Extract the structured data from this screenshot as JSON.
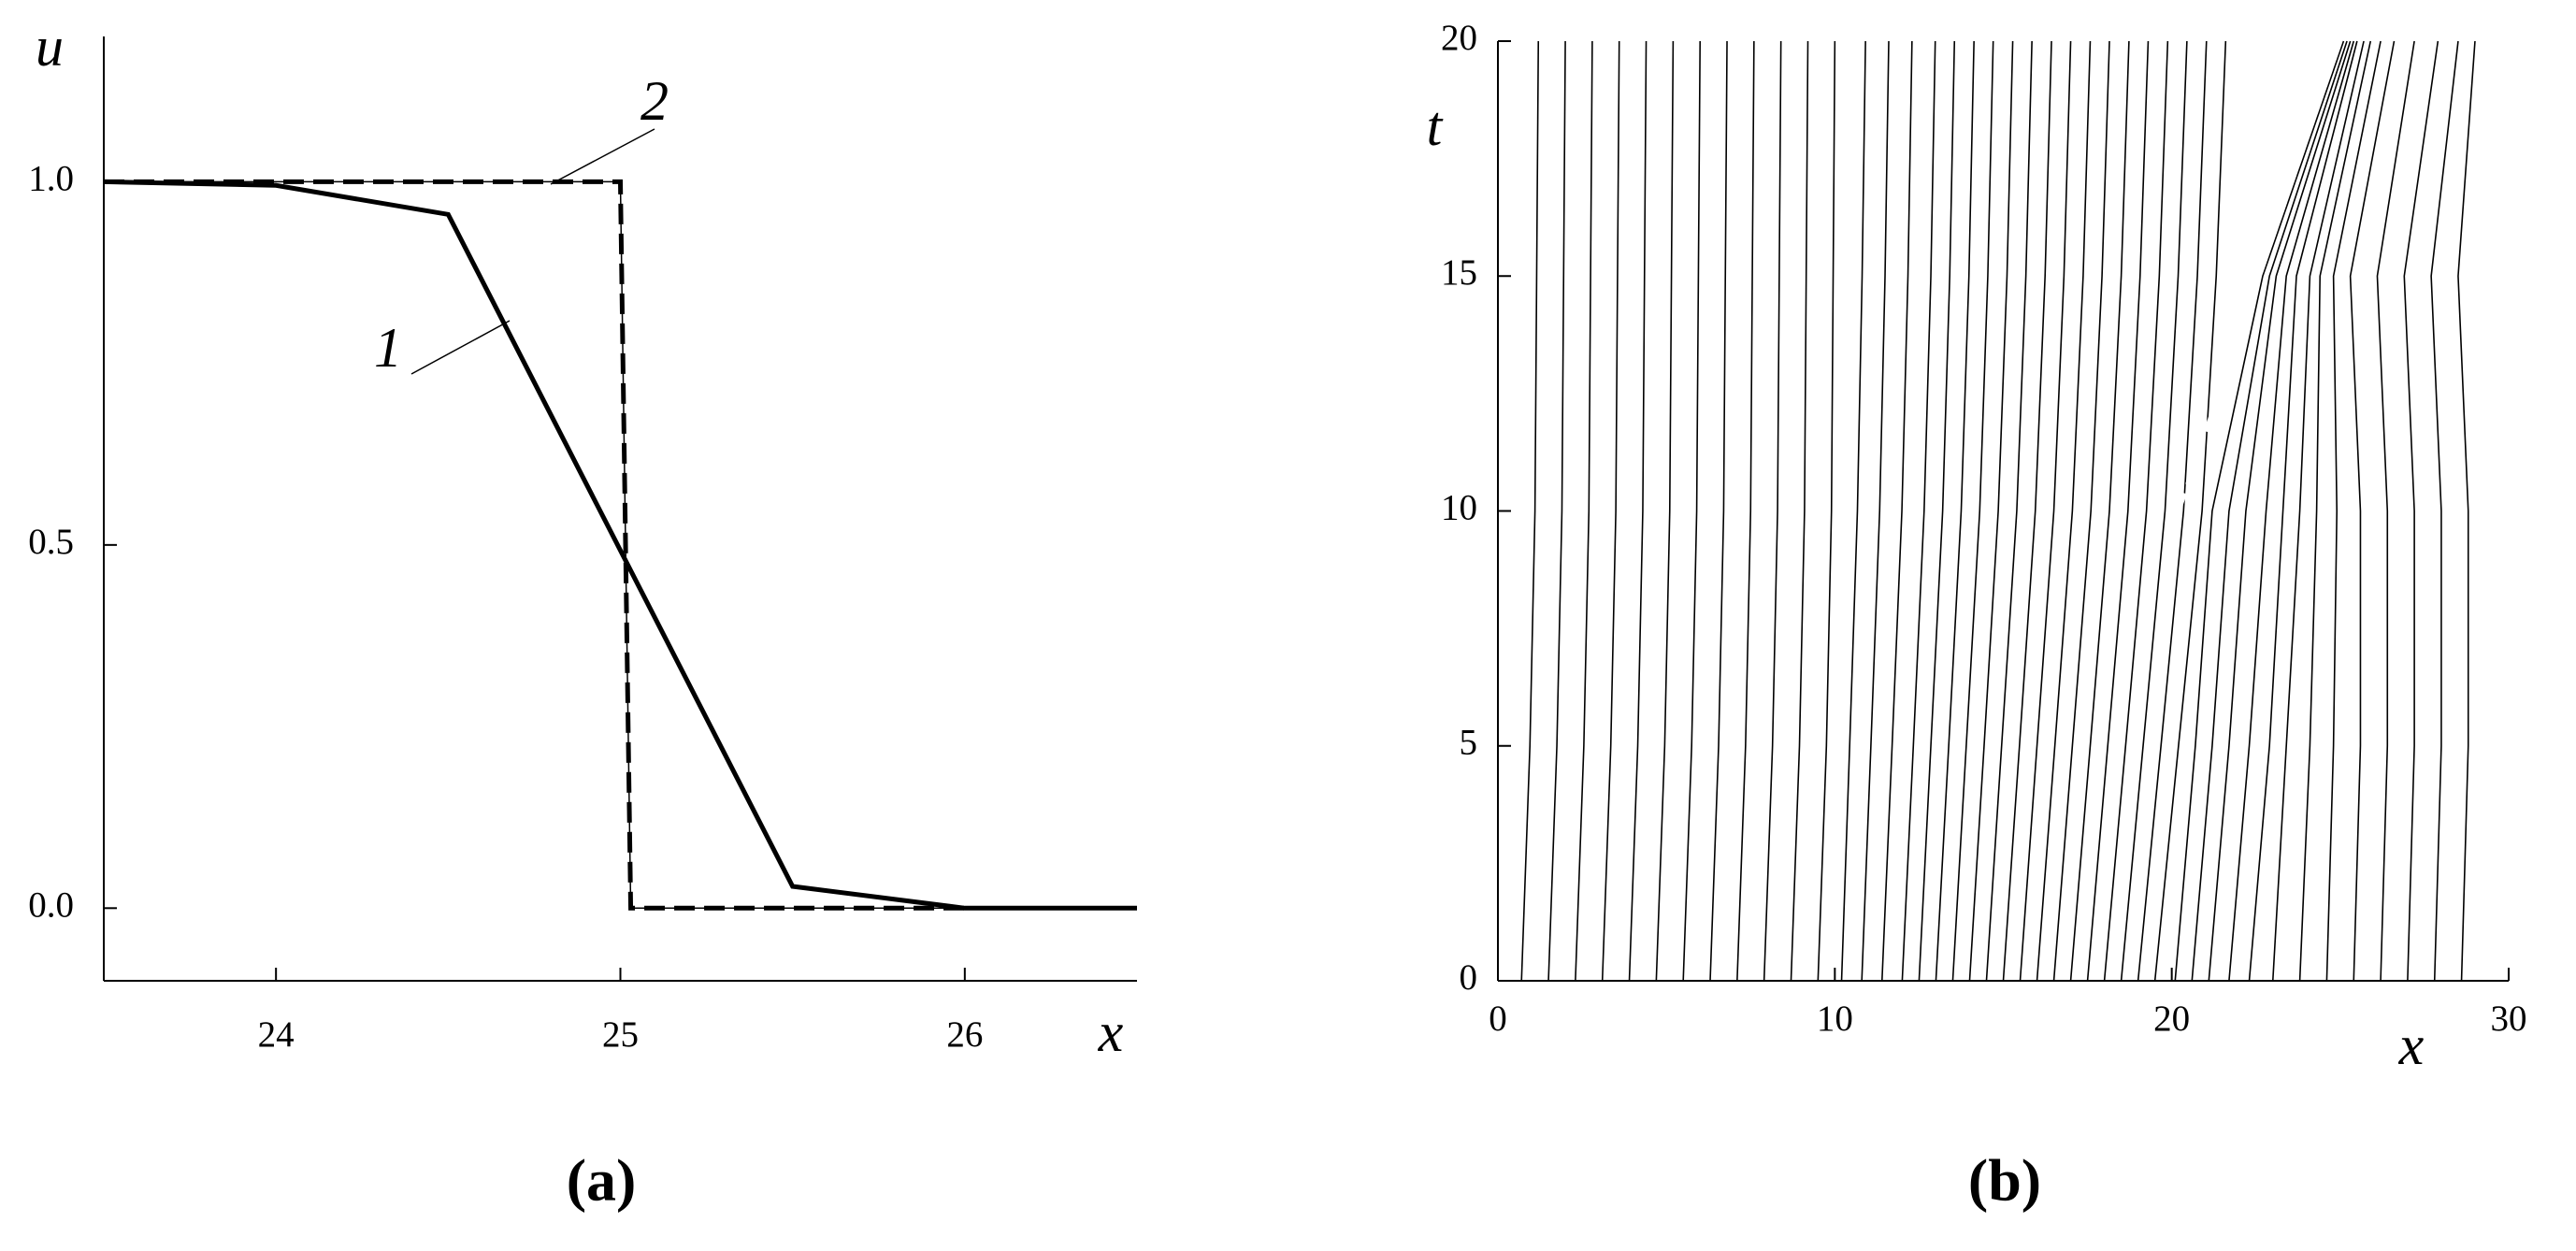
{
  "chart_data": [
    {
      "type": "line",
      "panel_label": "(a)",
      "x_label": "x",
      "y_label": "u",
      "xlim": [
        23.5,
        26.5
      ],
      "ylim": [
        -0.1,
        1.2
      ],
      "xticks": [
        24,
        25,
        26
      ],
      "yticks": [
        {
          "value": 0,
          "label": "0.0"
        },
        {
          "value": 0.5,
          "label": "0.5"
        },
        {
          "value": 1,
          "label": "1.0"
        }
      ],
      "series": [
        {
          "name": "1",
          "color": "#000000",
          "style": "solid",
          "x": [
            23.5,
            24,
            24.5,
            25.5,
            26,
            26.5
          ],
          "values": [
            1,
            0.995,
            0.955,
            0.03,
            0,
            0
          ]
        },
        {
          "name": "2",
          "color": "#000000",
          "style": "dashed",
          "x": [
            23.5,
            25,
            25.03,
            26
          ],
          "values": [
            1,
            1,
            0,
            0
          ]
        },
        {
          "color": "#000000",
          "style": "thin",
          "x": [
            23.5,
            25,
            25.03,
            26.5
          ],
          "values": [
            1,
            1,
            0,
            0
          ]
        }
      ]
    },
    {
      "type": "trajectories",
      "panel_label": "(b)",
      "x_label": "x",
      "y_label": "t",
      "xlim": [
        0,
        30
      ],
      "ylim": [
        0,
        20
      ],
      "xticks": [
        0,
        10,
        20,
        30
      ],
      "yticks": [
        0,
        5,
        10,
        15,
        20
      ],
      "color": "#000000",
      "t": [
        0,
        5,
        10,
        15,
        20
      ],
      "series": [
        {
          "x": [
            0.7,
            0.95,
            1.1,
            1.15,
            1.2
          ]
        },
        {
          "x": [
            1.5,
            1.75,
            1.9,
            1.95,
            2
          ]
        },
        {
          "x": [
            2.3,
            2.55,
            2.7,
            2.75,
            2.8
          ]
        },
        {
          "x": [
            3.1,
            3.35,
            3.5,
            3.55,
            3.6
          ]
        },
        {
          "x": [
            3.9,
            4.15,
            4.3,
            4.35,
            4.4
          ]
        },
        {
          "x": [
            4.7,
            4.95,
            5.1,
            5.15,
            5.2
          ]
        },
        {
          "x": [
            5.5,
            5.75,
            5.9,
            5.95,
            6
          ]
        },
        {
          "x": [
            6.3,
            6.55,
            6.7,
            6.75,
            6.8
          ]
        },
        {
          "x": [
            7.1,
            7.35,
            7.5,
            7.55,
            7.6
          ]
        },
        {
          "x": [
            7.9,
            8.15,
            8.3,
            8.35,
            8.4
          ]
        },
        {
          "x": [
            8.7,
            8.95,
            9.1,
            9.15,
            9.2
          ]
        },
        {
          "x": [
            9.5,
            9.75,
            9.9,
            9.95,
            10
          ]
        },
        {
          "x": [
            10.2,
            10.44,
            10.67,
            10.81,
            10.91
          ]
        },
        {
          "x": [
            10.8,
            11.07,
            11.33,
            11.49,
            11.6
          ]
        },
        {
          "x": [
            11.4,
            11.7,
            11.99,
            12.17,
            12.29
          ]
        },
        {
          "x": [
            12,
            12.33,
            12.65,
            12.85,
            12.98
          ]
        },
        {
          "x": [
            12.5,
            12.85,
            13.2,
            13.41,
            13.55
          ]
        },
        {
          "x": [
            13,
            13.38,
            13.75,
            13.98,
            14.13
          ]
        },
        {
          "x": [
            13.5,
            13.9,
            14.3,
            14.54,
            14.7
          ]
        },
        {
          "x": [
            14,
            14.43,
            14.85,
            15.11,
            15.28
          ]
        },
        {
          "x": [
            14.5,
            14.95,
            15.4,
            15.67,
            15.85
          ]
        },
        {
          "x": [
            15,
            15.48,
            15.95,
            16.24,
            16.43
          ]
        },
        {
          "x": [
            15.5,
            16,
            16.5,
            16.8,
            17
          ]
        },
        {
          "x": [
            16,
            16.53,
            17.05,
            17.37,
            17.58
          ]
        },
        {
          "x": [
            16.5,
            17.05,
            17.6,
            17.93,
            18.15
          ]
        },
        {
          "x": [
            17,
            17.58,
            18.15,
            18.5,
            18.73
          ]
        },
        {
          "x": [
            17.5,
            18.1,
            18.7,
            19.06,
            19.3
          ]
        },
        {
          "x": [
            18,
            18.63,
            19.25,
            19.63,
            19.88
          ]
        },
        {
          "x": [
            18.5,
            19.15,
            19.8,
            20.19,
            20.45
          ]
        },
        {
          "x": [
            19,
            19.68,
            20.35,
            20.76,
            21.03
          ]
        },
        {
          "x": [
            19.5,
            20.2,
            20.9,
            21.32,
            21.6
          ]
        },
        {
          "x": [
            20.1,
            20.7,
            21.2,
            22.7,
            25.1
          ]
        },
        {
          "x": [
            20.6,
            21.2,
            21.7,
            22.9,
            25.2
          ]
        },
        {
          "x": [
            21.1,
            21.7,
            22.2,
            23.1,
            25.3
          ]
        },
        {
          "x": [
            21.7,
            22.3,
            22.8,
            23.4,
            25.4
          ]
        },
        {
          "x": [
            22.3,
            22.9,
            23.3,
            23.7,
            25.5
          ]
        },
        {
          "x": [
            23,
            23.4,
            23.8,
            24.1,
            25.7
          ]
        },
        {
          "x": [
            23.8,
            24.1,
            24.3,
            24.4,
            25.9
          ]
        },
        {
          "x": [
            24.6,
            24.8,
            24.9,
            24.8,
            26.2
          ]
        },
        {
          "x": [
            25.4,
            25.6,
            25.6,
            25.3,
            26.6
          ]
        },
        {
          "x": [
            26.2,
            26.4,
            26.4,
            26.1,
            27.2
          ]
        },
        {
          "x": [
            27,
            27.2,
            27.2,
            26.9,
            27.9
          ]
        },
        {
          "x": [
            27.8,
            28,
            28,
            27.7,
            28.5
          ]
        },
        {
          "x": [
            28.6,
            28.8,
            28.8,
            28.5,
            29
          ]
        }
      ],
      "shock": {
        "x": [
          20.2,
          25
        ],
        "t": [
          10,
          20
        ],
        "color": "#ffffff"
      }
    }
  ]
}
